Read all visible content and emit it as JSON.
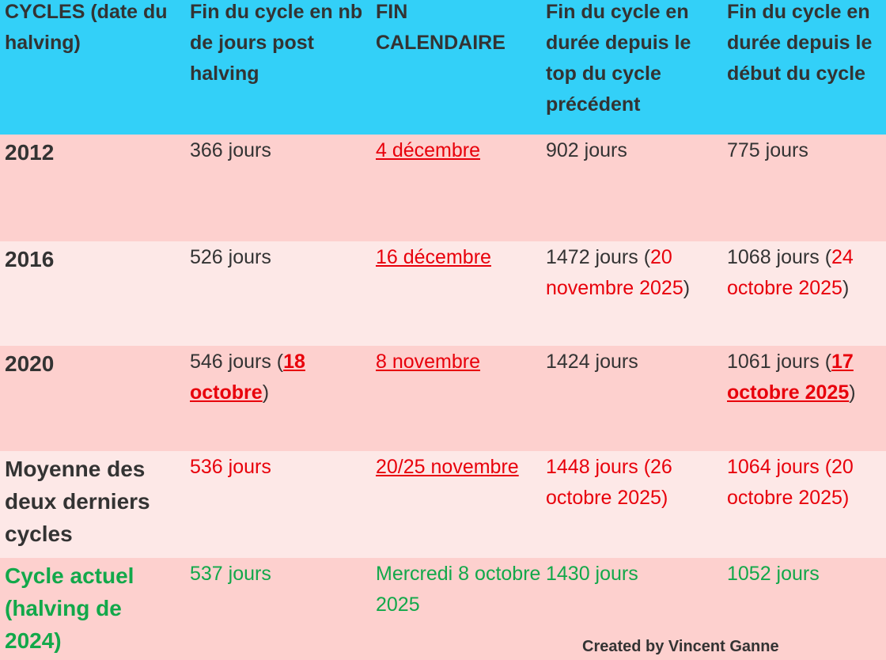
{
  "colors": {
    "header_bg": "#33d0f8",
    "row_dark": "#fdd0ce",
    "row_light": "#fde8e7",
    "text": "#333333",
    "red": "#e8000b",
    "green": "#12a84a"
  },
  "header": [
    "CYCLES (date du halving)",
    "Fin du cycle en nb de jours post halving",
    "FIN CALENDAIRE",
    "Fin du cycle en durée depuis le top du cycle précédent",
    "Fin du cycle en durée depuis le début du cycle"
  ],
  "rows": [
    {
      "cells": [
        [
          {
            "text": "2012",
            "kind": "label"
          }
        ],
        [
          {
            "text": "366 jours",
            "kind": "plain"
          }
        ],
        [
          {
            "text": "4 décembre",
            "kind": "link"
          }
        ],
        [
          {
            "text": "902 jours",
            "kind": "plain"
          }
        ],
        [
          {
            "text": "775 jours",
            "kind": "plain"
          }
        ]
      ]
    },
    {
      "cells": [
        [
          {
            "text": "2016",
            "kind": "label"
          }
        ],
        [
          {
            "text": "526 jours",
            "kind": "plain"
          }
        ],
        [
          {
            "text": "16 décembre",
            "kind": "link"
          }
        ],
        [
          {
            "text": "1472 jours (",
            "kind": "plain"
          },
          {
            "text": "20 novembre 2025",
            "kind": "red"
          },
          {
            "text": ")",
            "kind": "plain"
          }
        ],
        [
          {
            "text": "1068 jours (",
            "kind": "plain"
          },
          {
            "text": "24 octobre 2025",
            "kind": "red"
          },
          {
            "text": ")",
            "kind": "plain"
          }
        ]
      ]
    },
    {
      "cells": [
        [
          {
            "text": "2020",
            "kind": "label"
          }
        ],
        [
          {
            "text": "546 jours (",
            "kind": "plain"
          },
          {
            "text": "18 octobre",
            "kind": "boldlink"
          },
          {
            "text": ")",
            "kind": "plain"
          }
        ],
        [
          {
            "text": "8 novembre",
            "kind": "link"
          }
        ],
        [
          {
            "text": "1424 jours",
            "kind": "plain"
          }
        ],
        [
          {
            "text": "1061 jours (",
            "kind": "plain"
          },
          {
            "text": "17 octobre 2025",
            "kind": "boldlink"
          },
          {
            "text": ")",
            "kind": "plain"
          }
        ]
      ]
    },
    {
      "cells": [
        [
          {
            "text": "Moyenne des deux derniers cycles",
            "kind": "label"
          }
        ],
        [
          {
            "text": "536 jours",
            "kind": "red"
          }
        ],
        [
          {
            "text": "20/25 novembre",
            "kind": "link"
          }
        ],
        [
          {
            "text": "1448 jours (26 octobre 2025)",
            "kind": "red"
          }
        ],
        [
          {
            "text": "1064 jours (20 octobre 2025)",
            "kind": "red"
          }
        ]
      ]
    },
    {
      "cells": [
        [
          {
            "text": "Cycle actuel (halving de 2024)",
            "kind": "greenbold"
          }
        ],
        [
          {
            "text": "537 jours",
            "kind": "green"
          }
        ],
        [
          {
            "text": "Mercredi 8 octobre 2025",
            "kind": "green"
          }
        ],
        [
          {
            "text": "1430 jours",
            "kind": "green"
          }
        ],
        [
          {
            "text": "1052 jours",
            "kind": "green"
          }
        ]
      ]
    }
  ],
  "credit": "Created by Vincent Ganne"
}
